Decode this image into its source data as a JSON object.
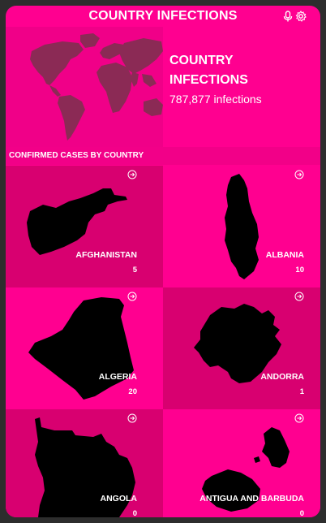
{
  "header": {
    "title": "COUNTRY INFECTIONS",
    "mic_icon": "microphone-icon",
    "settings_icon": "gear-icon"
  },
  "hero": {
    "title": "COUNTRY INFECTIONS",
    "subtitle": "787,877 infections",
    "map_icon": "world-map"
  },
  "section": {
    "label": "CONFIRMED CASES BY COUNTRY"
  },
  "countries": [
    {
      "name": "AFGHANISTAN",
      "count": "5"
    },
    {
      "name": "ALBANIA",
      "count": "10"
    },
    {
      "name": "ALGERIA",
      "count": "20"
    },
    {
      "name": "ANDORRA",
      "count": "1"
    },
    {
      "name": "ANGOLA",
      "count": "0"
    },
    {
      "name": "ANTIGUA AND BARBUDA",
      "count": "0"
    }
  ],
  "colors": {
    "background": "#2d2d2d",
    "accent": "#ff0090",
    "tile_dark": "#d80070",
    "map": "#8b2a55"
  }
}
